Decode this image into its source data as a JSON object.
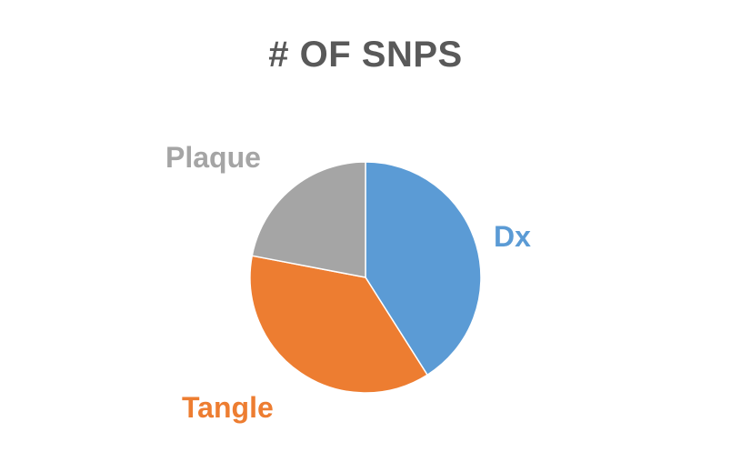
{
  "chart_data": {
    "type": "pie",
    "title": "# OF SNPS",
    "categories": [
      "Dx",
      "Tangle",
      "Plaque"
    ],
    "values": [
      41,
      37,
      22
    ],
    "colors": [
      "#5B9BD5",
      "#ED7D31",
      "#A5A5A5"
    ],
    "legend": "none",
    "data_labels": "category names outside slices"
  }
}
